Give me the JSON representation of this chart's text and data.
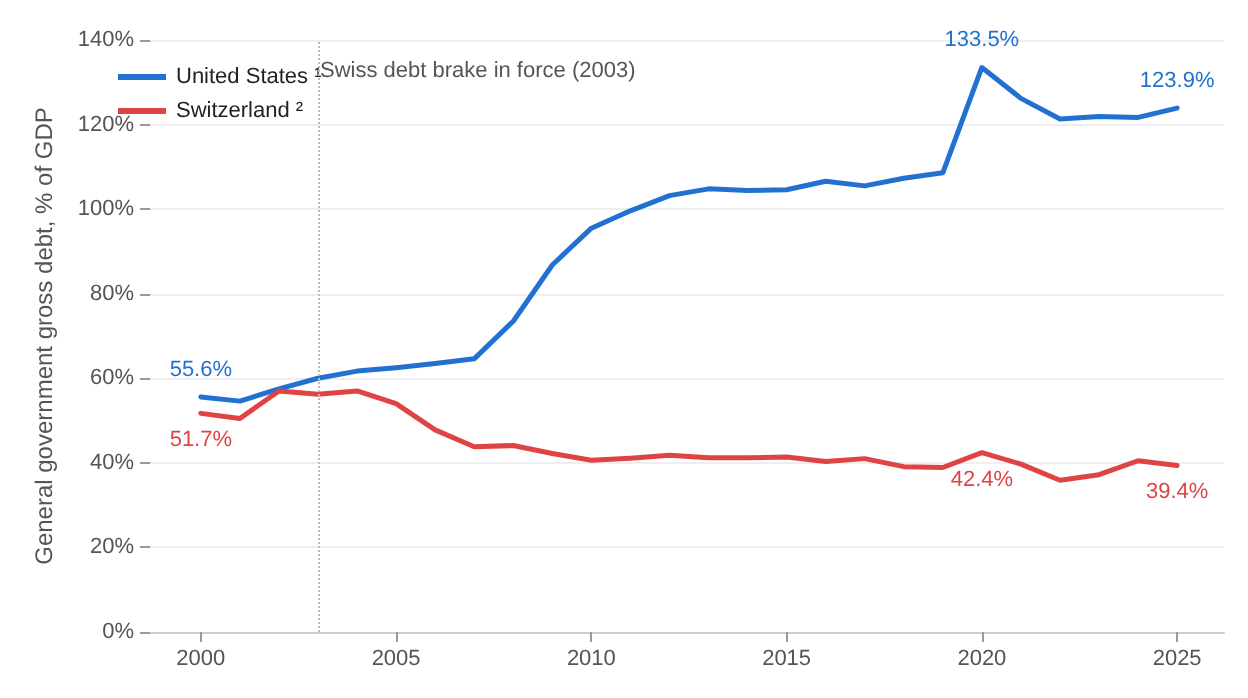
{
  "chart_data": {
    "type": "line",
    "ylabel": "General government gross debt, % of GDP",
    "x": [
      2000,
      2001,
      2002,
      2003,
      2004,
      2005,
      2006,
      2007,
      2008,
      2009,
      2010,
      2011,
      2012,
      2013,
      2014,
      2015,
      2016,
      2017,
      2018,
      2019,
      2020,
      2021,
      2022,
      2023,
      2024,
      2025
    ],
    "series": [
      {
        "name": "United States ¹",
        "color": "#2271d1",
        "values": [
          55.6,
          54.6,
          57.5,
          60,
          61.7,
          62.5,
          63.5,
          64.6,
          73.5,
          86.8,
          95.5,
          99.6,
          103.2,
          104.8,
          104.4,
          104.6,
          106.6,
          105.5,
          107.3,
          108.6,
          133.5,
          126.2,
          121.3,
          121.9,
          121.7,
          123.9
        ]
      },
      {
        "name": "Switzerland ²",
        "color": "#e04343",
        "values": [
          51.7,
          50.5,
          57,
          56.2,
          57,
          54,
          47.8,
          43.8,
          44.1,
          42.2,
          40.6,
          41.1,
          41.8,
          41.2,
          41.2,
          41.4,
          40.3,
          41,
          39.1,
          38.9,
          42.4,
          39.7,
          35.9,
          37.2,
          40.5,
          39.4
        ]
      }
    ],
    "xlim": [
      1998.7,
      2026.2
    ],
    "xticks": [
      2000,
      2005,
      2010,
      2015,
      2020,
      2025
    ],
    "ylim": [
      0,
      140
    ],
    "yticks": [
      {
        "value": 0,
        "label": "0%"
      },
      {
        "value": 20,
        "label": "20%"
      },
      {
        "value": 40,
        "label": "40%"
      },
      {
        "value": 60,
        "label": "60%"
      },
      {
        "value": 80,
        "label": "80%"
      },
      {
        "value": 100,
        "label": "100%"
      },
      {
        "value": 120,
        "label": "120%"
      },
      {
        "value": 140,
        "label": "140%"
      }
    ],
    "grid": "y",
    "legend": "top left",
    "marker": "none",
    "line_style": "solid",
    "ref_lines": [
      {
        "axis": "x",
        "value": 2003,
        "label": "Swiss debt brake in force (2003)",
        "color": "#bbbbbb",
        "line_style": "dotted"
      }
    ],
    "annotations": [
      {
        "text": "55.6%",
        "x": 2000,
        "y": 55.6
      },
      {
        "text": "133.5%",
        "x": 2020,
        "y": 133.5
      },
      {
        "text": "123.9%",
        "x": 2025,
        "y": 123.9
      },
      {
        "text": "51.7%",
        "x": 2000,
        "y": 51.7
      },
      {
        "text": "42.4%",
        "x": 2020,
        "y": 42.4
      },
      {
        "text": "39.4%",
        "x": 2025,
        "y": 39.4
      }
    ]
  }
}
